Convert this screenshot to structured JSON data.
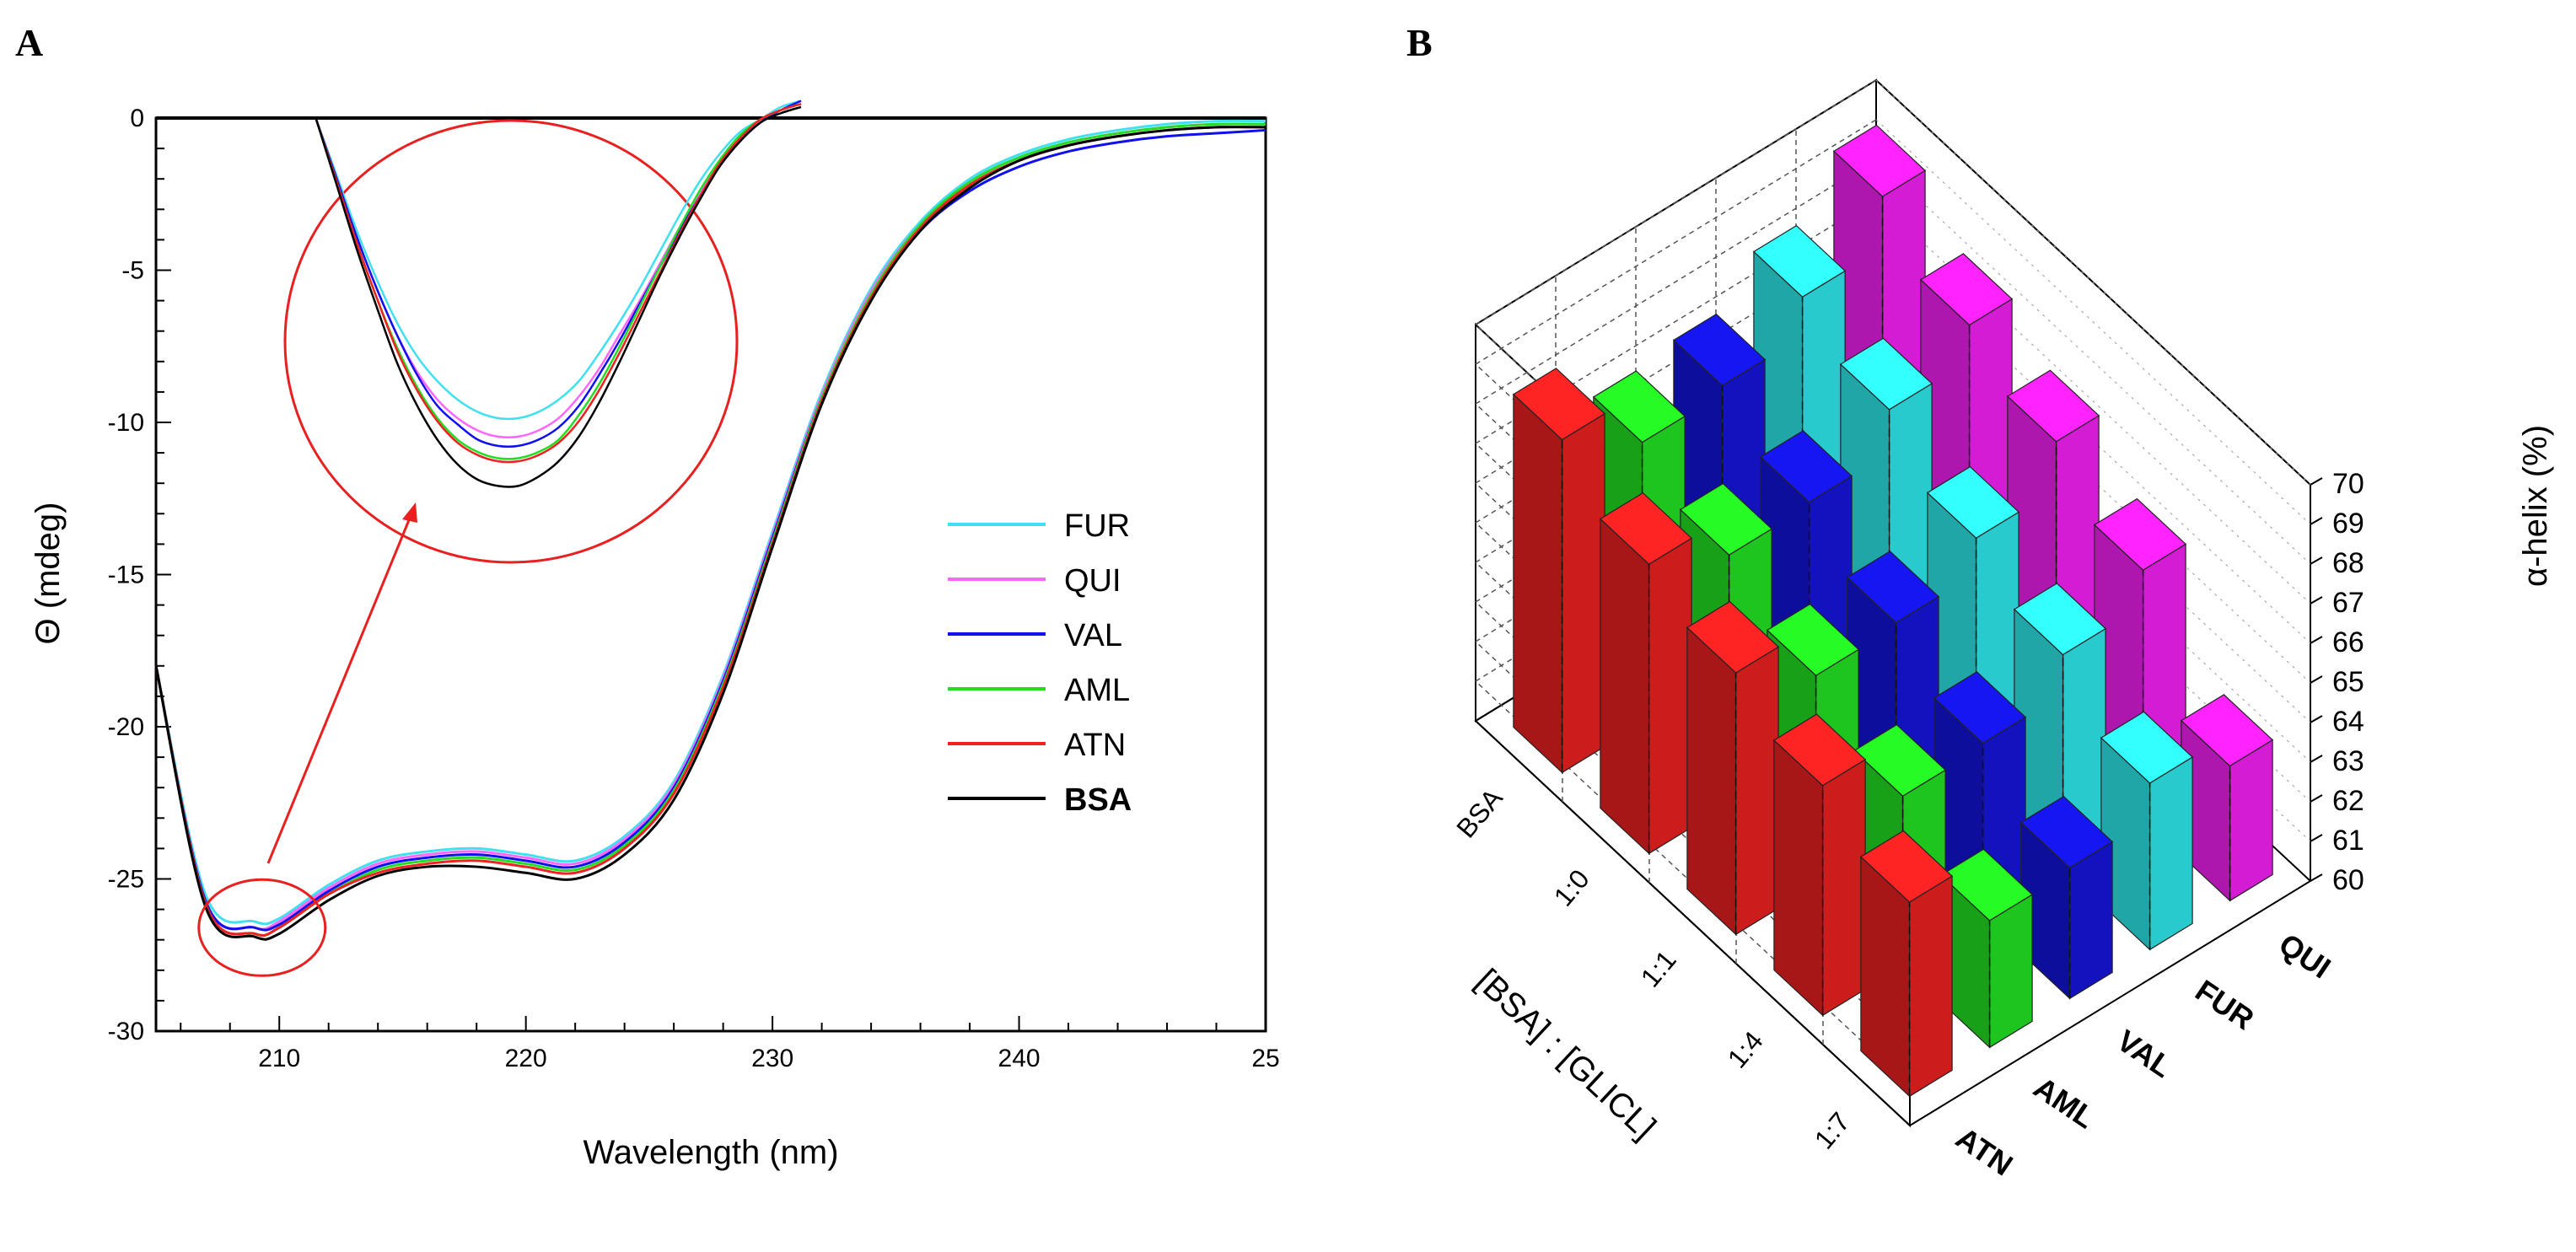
{
  "chart_data": [
    {
      "panel": "A",
      "type": "line",
      "xlabel": "Wavelength (nm)",
      "ylabel": "Θ (mdeg)",
      "xlim": [
        205,
        250
      ],
      "ylim": [
        -30,
        0
      ],
      "x_ticks": [
        "210",
        "220",
        "230",
        "240",
        "25"
      ],
      "y_ticks": [
        "0",
        "-5",
        "-10",
        "-15",
        "-20",
        "-25",
        "-30"
      ],
      "x": [
        205,
        207,
        209,
        210,
        212,
        214,
        216,
        218,
        220,
        222,
        224,
        226,
        228,
        230,
        232,
        234,
        236,
        238,
        240,
        242,
        244,
        246,
        248,
        250
      ],
      "series": [
        {
          "name": "FUR",
          "color": "#40e0f0",
          "values": [
            -18.0,
            -25.5,
            -26.4,
            -26.3,
            -25.2,
            -24.4,
            -24.1,
            -24.0,
            -24.2,
            -24.4,
            -23.6,
            -21.8,
            -18.3,
            -13.6,
            -9.0,
            -5.6,
            -3.4,
            -2.0,
            -1.2,
            -0.7,
            -0.4,
            -0.2,
            -0.1,
            -0.1
          ]
        },
        {
          "name": "QUI",
          "color": "#ff66ff",
          "values": [
            -18.0,
            -25.7,
            -26.6,
            -26.4,
            -25.3,
            -24.5,
            -24.2,
            -24.1,
            -24.3,
            -24.5,
            -23.7,
            -21.9,
            -18.4,
            -13.7,
            -9.1,
            -5.7,
            -3.5,
            -2.1,
            -1.3,
            -0.8,
            -0.5,
            -0.3,
            -0.2,
            -0.2
          ]
        },
        {
          "name": "VAL",
          "color": "#1010ee",
          "values": [
            -18.0,
            -25.7,
            -26.6,
            -26.5,
            -25.4,
            -24.6,
            -24.3,
            -24.2,
            -24.4,
            -24.6,
            -23.8,
            -22.0,
            -18.5,
            -13.8,
            -9.2,
            -5.9,
            -3.7,
            -2.4,
            -1.6,
            -1.1,
            -0.8,
            -0.6,
            -0.5,
            -0.4
          ]
        },
        {
          "name": "AML",
          "color": "#22dd22",
          "values": [
            -18.0,
            -25.8,
            -26.8,
            -26.6,
            -25.5,
            -24.7,
            -24.4,
            -24.3,
            -24.5,
            -24.7,
            -23.9,
            -22.1,
            -18.6,
            -13.9,
            -9.2,
            -5.8,
            -3.5,
            -2.1,
            -1.3,
            -0.8,
            -0.5,
            -0.3,
            -0.2,
            -0.2
          ]
        },
        {
          "name": "ATN",
          "color": "#ee2222",
          "values": [
            -18.0,
            -25.8,
            -26.8,
            -26.6,
            -25.5,
            -24.8,
            -24.5,
            -24.4,
            -24.6,
            -24.8,
            -24.0,
            -22.2,
            -18.7,
            -14.0,
            -9.3,
            -5.9,
            -3.6,
            -2.2,
            -1.4,
            -0.9,
            -0.6,
            -0.4,
            -0.3,
            -0.3
          ]
        },
        {
          "name": "BSA",
          "color": "#000000",
          "values": [
            -18.0,
            -25.9,
            -26.9,
            -26.8,
            -25.7,
            -24.9,
            -24.6,
            -24.6,
            -24.8,
            -25.0,
            -24.2,
            -22.4,
            -18.9,
            -14.1,
            -9.4,
            -6.0,
            -3.7,
            -2.3,
            -1.4,
            -0.9,
            -0.6,
            -0.4,
            -0.3,
            -0.3
          ]
        }
      ],
      "inset_zoom": {
        "note": "magnified view of the minimum near 209 nm",
        "x": [
          0,
          1,
          2,
          3,
          4,
          5,
          6,
          7,
          8,
          9,
          10,
          11,
          12,
          13,
          14,
          15,
          16,
          17,
          18,
          19,
          20,
          21,
          22,
          23,
          24
        ],
        "series": [
          {
            "name": "FUR",
            "values": [
              0.0,
              -1.8,
              -3.6,
              -5.2,
              -6.6,
              -7.7,
              -8.5,
              -9.1,
              -9.5,
              -9.7,
              -9.7,
              -9.5,
              -9.1,
              -8.5,
              -7.6,
              -6.6,
              -5.5,
              -4.3,
              -3.1,
              -2.0,
              -1.1,
              -0.4,
              0.0,
              0.4,
              0.6
            ]
          },
          {
            "name": "QUI",
            "values": [
              0.0,
              -1.9,
              -3.8,
              -5.5,
              -7.0,
              -8.2,
              -9.1,
              -9.7,
              -10.1,
              -10.3,
              -10.3,
              -10.1,
              -9.7,
              -9.0,
              -8.1,
              -7.0,
              -5.9,
              -4.7,
              -3.5,
              -2.4,
              -1.4,
              -0.6,
              0.0,
              0.3,
              0.5
            ]
          },
          {
            "name": "VAL",
            "values": [
              0.0,
              -1.9,
              -3.8,
              -5.5,
              -7.0,
              -8.3,
              -9.3,
              -9.9,
              -10.4,
              -10.6,
              -10.6,
              -10.4,
              -10.0,
              -9.3,
              -8.3,
              -7.2,
              -6.0,
              -4.8,
              -3.6,
              -2.5,
              -1.5,
              -0.7,
              -0.1,
              0.3,
              0.6
            ]
          },
          {
            "name": "AML",
            "values": [
              0.0,
              -2.0,
              -4.0,
              -5.8,
              -7.4,
              -8.7,
              -9.7,
              -10.4,
              -10.8,
              -11.0,
              -11.0,
              -10.8,
              -10.4,
              -9.6,
              -8.6,
              -7.4,
              -6.1,
              -4.8,
              -3.5,
              -2.3,
              -1.3,
              -0.5,
              0.0,
              0.3,
              0.5
            ]
          },
          {
            "name": "ATN",
            "values": [
              0.0,
              -2.0,
              -4.0,
              -5.8,
              -7.5,
              -8.8,
              -9.8,
              -10.5,
              -10.9,
              -11.1,
              -11.1,
              -10.9,
              -10.5,
              -9.8,
              -8.8,
              -7.6,
              -6.3,
              -5.0,
              -3.7,
              -2.5,
              -1.4,
              -0.6,
              0.0,
              0.3,
              0.5
            ]
          },
          {
            "name": "BSA",
            "values": [
              0.0,
              -2.1,
              -4.2,
              -6.1,
              -7.9,
              -9.3,
              -10.4,
              -11.2,
              -11.7,
              -11.9,
              -11.9,
              -11.6,
              -11.1,
              -10.3,
              -9.2,
              -7.9,
              -6.5,
              -5.1,
              -3.8,
              -2.6,
              -1.5,
              -0.7,
              -0.1,
              0.2,
              0.4
            ]
          }
        ]
      },
      "legend": [
        "FUR",
        "QUI",
        "VAL",
        "AML",
        "ATN",
        "BSA"
      ],
      "legend_position": "right"
    },
    {
      "panel": "B",
      "type": "bar3d",
      "zlabel": "α-helix (%)",
      "zlim": [
        60,
        70
      ],
      "z_ticks": [
        "60",
        "61",
        "62",
        "63",
        "64",
        "65",
        "66",
        "67",
        "68",
        "69",
        "70"
      ],
      "ratio_axis_label": "[BSA] : [GLICL]",
      "ratio_categories": [
        "BSA",
        "1:0",
        "1:1",
        "1:4",
        "1:7"
      ],
      "drug_categories": [
        "ATN",
        "AML",
        "VAL",
        "FUR",
        "QUI"
      ],
      "series": [
        {
          "name": "ATN",
          "color": "#e82020",
          "values": [
            68.4,
            67.3,
            66.6,
            65.8,
            64.9
          ]
        },
        {
          "name": "AML",
          "color": "#22e022",
          "values": [
            67.1,
            66.3,
            65.3,
            64.3,
            63.2
          ]
        },
        {
          "name": "VAL",
          "color": "#1414d8",
          "values": [
            67.3,
            66.4,
            65.4,
            64.4,
            63.3
          ]
        },
        {
          "name": "FUR",
          "color": "#2ee6ea",
          "values": [
            68.3,
            67.5,
            66.3,
            65.4,
            64.2
          ]
        },
        {
          "name": "QUI",
          "color": "#f020f0",
          "values": [
            69.6,
            68.4,
            67.5,
            66.3,
            63.4
          ]
        }
      ]
    }
  ],
  "panel_labels": {
    "a": "A",
    "b": "B"
  }
}
